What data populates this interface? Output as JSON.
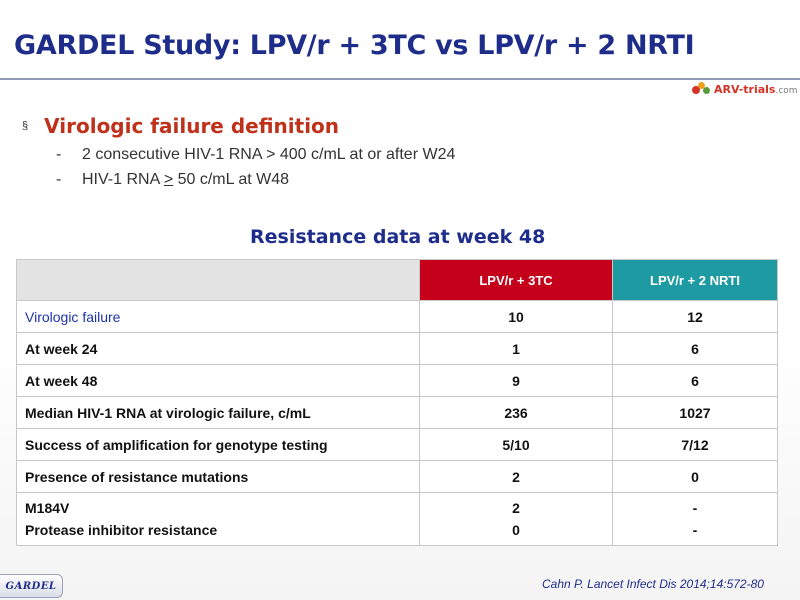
{
  "slide": {
    "title": "GARDEL Study: LPV/r + 3TC vs LPV/r + 2 NRTI",
    "logo_text": "ARV-trials",
    "logo_suffix": ".com",
    "bullet_marker": "§",
    "bullet": "Virologic failure definition",
    "subbullets": [
      {
        "dash": "-",
        "text": "2 consecutive HIV-1 RNA > 400 c/mL at or after W24"
      },
      {
        "dash": "-",
        "pre": "HIV-1 RNA ",
        "symbol": ">",
        "post": " 50 c/mL at  W48"
      }
    ],
    "table_title": "Resistance data at week 48",
    "citation": "Cahn P. Lancet Infect Dis 2014;14:572-80",
    "badge": "GARDEL"
  },
  "table": {
    "headers": [
      "",
      "LPV/r + 3TC",
      "LPV/r + 2 NRTI"
    ],
    "rows": [
      {
        "label": "Virologic failure",
        "c1": "10",
        "c2": "12"
      },
      {
        "label": "At week 24",
        "c1": "1",
        "c2": "6"
      },
      {
        "label": "At week 48",
        "c1": "9",
        "c2": "6"
      },
      {
        "label": "Median HIV-1 RNA at virologic failure, c/mL",
        "c1": "236",
        "c2": "1027"
      },
      {
        "label": "Success of amplification for genotype testing",
        "c1": "5/10",
        "c2": "7/12"
      },
      {
        "label": "Presence of resistance mutations",
        "c1": "2",
        "c2": "0"
      },
      {
        "label_a": "M184V",
        "label_b": "Protease inhibitor resistance",
        "c1_a": "2",
        "c1_b": "0",
        "c2_a": "-",
        "c2_b": "-"
      }
    ]
  },
  "colors": {
    "title": "#1f2d8a",
    "bullet": "#c0311a",
    "header_3tc": "#c5001a",
    "header_2nrti": "#1e9aa2",
    "header_blank": "#e3e3e3"
  }
}
